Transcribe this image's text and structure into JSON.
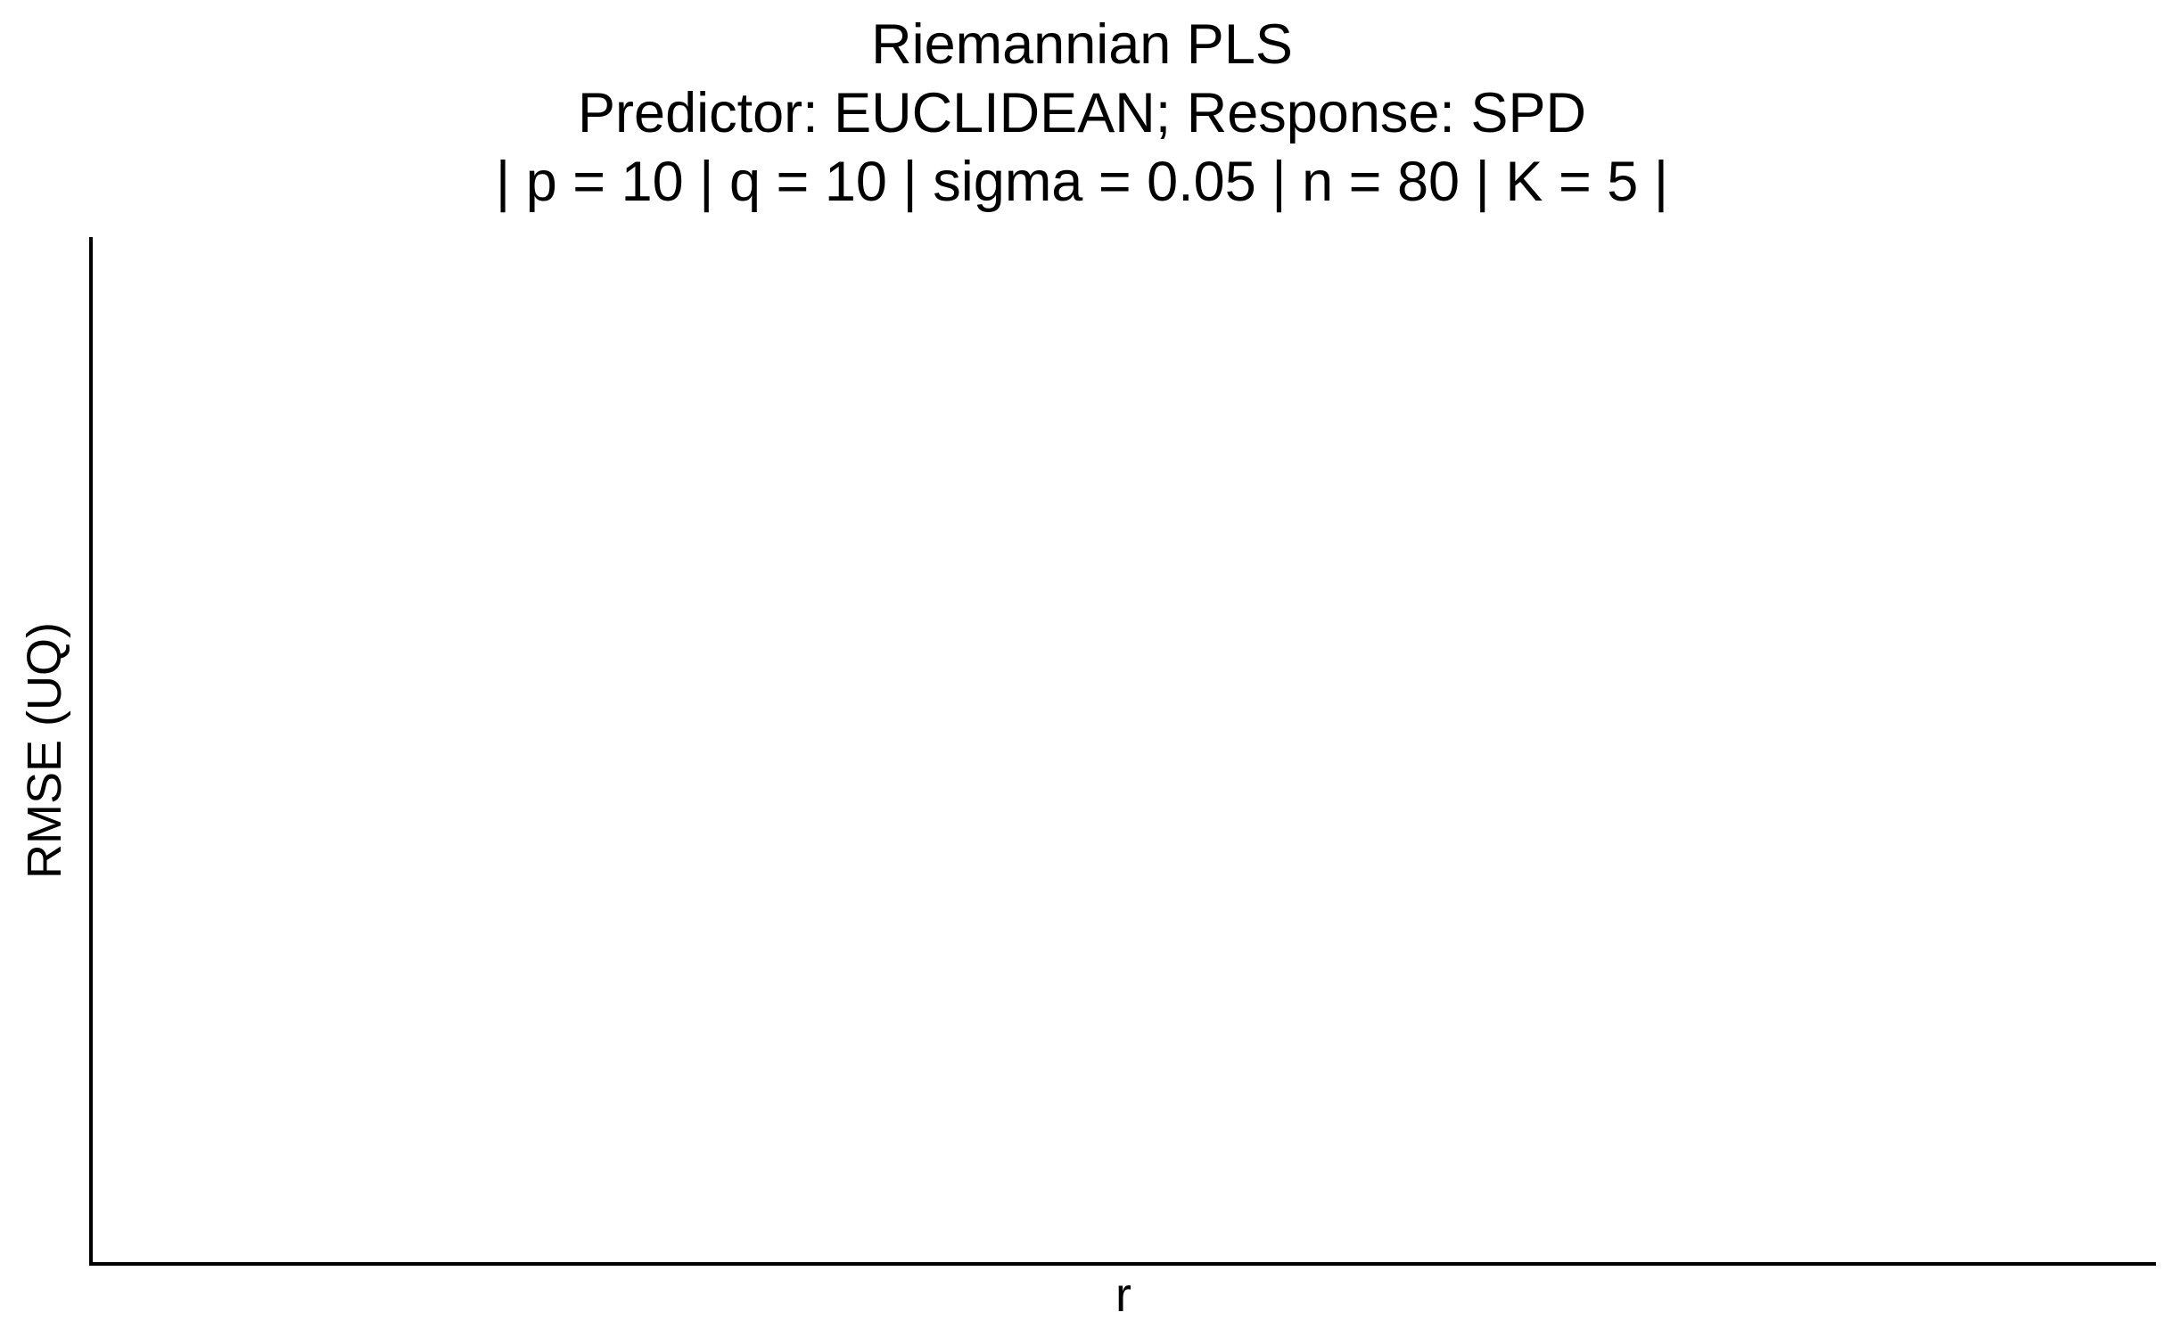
{
  "chart_data": {
    "type": "line",
    "title": "Riemannian PLS",
    "subtitle": [
      "Predictor: EUCLIDEAN; Response: SPD",
      "| p = 10 | q = 10 | sigma = 0.05 | n = 80 | K = 5 |"
    ],
    "xlabel": "r",
    "ylabel": "RMSE (UQ)",
    "x": [],
    "series": [],
    "grid": false,
    "legend": "none"
  }
}
